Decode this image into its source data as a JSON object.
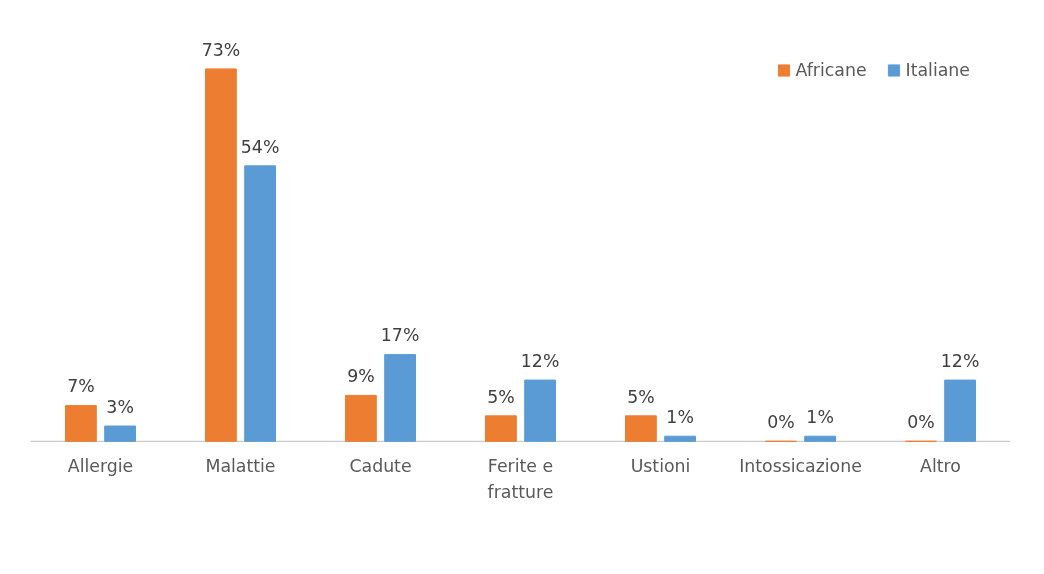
{
  "chart_data": {
    "type": "bar",
    "categories": [
      "Allergie",
      "Malattie",
      "Cadute",
      "Ferite e fratture",
      "Ustioni",
      "Intossicazione",
      "Altro"
    ],
    "series": [
      {
        "name": "Africane",
        "color": "#ed7d31",
        "values": [
          7,
          73,
          9,
          5,
          5,
          0,
          0
        ],
        "value_labels": [
          "7%",
          "73%",
          "9%",
          "5%",
          "5%",
          "0%",
          "0%"
        ]
      },
      {
        "name": "Italiane",
        "color": "#5b9bd5",
        "values": [
          3,
          54,
          17,
          12,
          1,
          1,
          12
        ],
        "value_labels": [
          "3%",
          "54%",
          "17%",
          "12%",
          "1%",
          "1%",
          "12%"
        ]
      }
    ],
    "legend": "top right",
    "grid": false
  }
}
